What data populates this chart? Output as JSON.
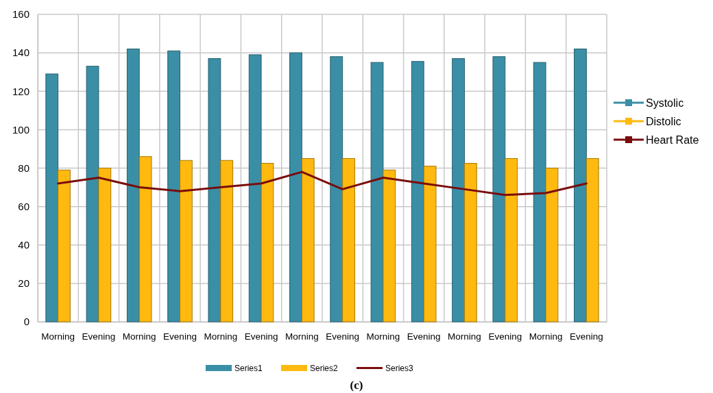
{
  "chart_data": {
    "type": "bar",
    "categories": [
      "Morning",
      "Evening",
      "Morning",
      "Evening",
      "Morning",
      "Evening",
      "Morning",
      "Evening",
      "Morning",
      "Evening",
      "Morning",
      "Evening",
      "Morning",
      "Evening"
    ],
    "series": [
      {
        "name": "Systolic",
        "color": "#3a8fa6",
        "values": [
          129,
          133,
          142,
          141,
          137,
          139,
          140,
          138,
          135,
          135.5,
          137,
          138,
          135,
          142
        ]
      },
      {
        "name": "Distolic",
        "color": "#ffb90f",
        "values": [
          79,
          80,
          86,
          84,
          84,
          82.5,
          85,
          85,
          79,
          81,
          82.5,
          85,
          80,
          85
        ]
      },
      {
        "name": "Heart Rate",
        "type": "line",
        "color": "#7a0c0c",
        "values": [
          72,
          75,
          70,
          68,
          70,
          72,
          78,
          69,
          75,
          72,
          69,
          66,
          67,
          72
        ]
      }
    ],
    "ylim": [
      0,
      160
    ],
    "yticks": [
      0,
      20,
      40,
      60,
      80,
      100,
      120,
      140,
      160
    ],
    "grid": true,
    "legend": "right",
    "annotations": [
      "Series1",
      "Series2",
      "Series3",
      "(c)"
    ]
  }
}
